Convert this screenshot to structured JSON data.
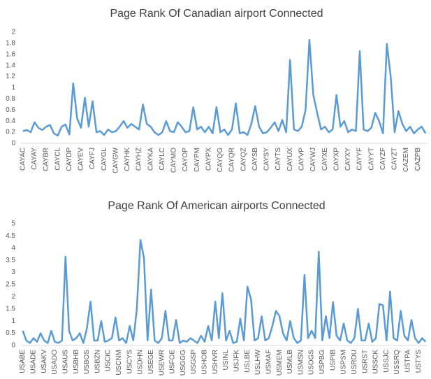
{
  "chart_data": [
    {
      "type": "line",
      "title": "Page Rank Of Canadian airport Connected",
      "color": "#5b9bd5",
      "categories": [
        "CAYAC",
        null,
        null,
        "CAYAY",
        null,
        null,
        "CAYBR",
        null,
        null,
        "CAYCL",
        null,
        null,
        "CAYDP",
        null,
        null,
        "CAYEV",
        null,
        null,
        "CAYFJ",
        null,
        null,
        "CAYGL",
        null,
        null,
        "CAYGW",
        null,
        null,
        "CAYHK",
        null,
        null,
        "CAYHZ",
        null,
        null,
        "CAYKA",
        null,
        null,
        "CAYLC",
        null,
        null,
        "CAYMO",
        null,
        null,
        "CAYOP",
        null,
        null,
        "CAYPM",
        null,
        null,
        "CAYPX",
        null,
        null,
        "CAYQG",
        null,
        null,
        "CAYQR",
        null,
        null,
        "CAYQZ",
        null,
        null,
        "CAYSB",
        null,
        null,
        "CAYSY",
        null,
        null,
        "CAYTS",
        null,
        null,
        "CAYUX",
        null,
        null,
        "CAYVP",
        null,
        null,
        "CAYWJ",
        null,
        null,
        "CAYXE",
        null,
        null,
        "CAYXP",
        null,
        null,
        "CAYXY",
        null,
        null,
        "CAYYF",
        null,
        null,
        "CAYYT",
        null,
        null,
        "CAYZF",
        null,
        null,
        "CAYZT",
        null,
        null,
        "CAZEM",
        null,
        null,
        "CAZPB",
        null,
        null
      ],
      "values": [
        0.22,
        0.24,
        0.2,
        0.38,
        0.28,
        0.24,
        0.3,
        0.33,
        0.18,
        0.14,
        0.3,
        0.34,
        0.16,
        1.08,
        0.45,
        0.28,
        0.82,
        0.3,
        0.76,
        0.2,
        0.22,
        0.15,
        0.25,
        0.2,
        0.22,
        0.3,
        0.4,
        0.28,
        0.35,
        0.3,
        0.25,
        0.7,
        0.35,
        0.3,
        0.2,
        0.15,
        0.2,
        0.4,
        0.22,
        0.2,
        0.38,
        0.3,
        0.2,
        0.22,
        0.65,
        0.25,
        0.3,
        0.2,
        0.3,
        0.18,
        0.65,
        0.2,
        0.25,
        0.15,
        0.25,
        0.72,
        0.18,
        0.2,
        0.15,
        0.35,
        0.67,
        0.3,
        0.18,
        0.2,
        0.28,
        0.38,
        0.22,
        0.42,
        0.2,
        1.5,
        0.25,
        0.22,
        0.3,
        0.6,
        1.86,
        0.87,
        0.55,
        0.25,
        0.3,
        0.2,
        0.25,
        0.87,
        0.3,
        0.4,
        0.2,
        0.25,
        0.22,
        1.66,
        0.25,
        0.22,
        0.28,
        0.55,
        0.4,
        0.18,
        1.79,
        1.2,
        0.2,
        0.58,
        0.35,
        0.22,
        0.3,
        0.18,
        0.25,
        0.3,
        0.18
      ],
      "ylim": [
        0,
        2
      ],
      "yticks": [
        0,
        0.2,
        0.4,
        0.6,
        0.8,
        1,
        1.2,
        1.4,
        1.6,
        1.8,
        2
      ],
      "grid": false
    },
    {
      "type": "line",
      "title": "Page Rank Of American airports Connected",
      "color": "#5b9bd5",
      "categories": [
        "USABE",
        null,
        null,
        "USADE",
        null,
        null,
        "USAKV",
        null,
        null,
        "USADO",
        null,
        null,
        "USAUS",
        null,
        null,
        "USBHB",
        null,
        null,
        "USBOS",
        null,
        null,
        "USBZN",
        null,
        null,
        "USCIC",
        null,
        null,
        "USCNM",
        null,
        null,
        "USCYS",
        null,
        null,
        "USDHN",
        null,
        null,
        "USEGE",
        null,
        null,
        "USEWR",
        null,
        null,
        "USFOE",
        null,
        null,
        "USGGG",
        null,
        null,
        "USGSP",
        null,
        null,
        "USHOB",
        null,
        null,
        "USHVR",
        null,
        null,
        "USINL",
        null,
        null,
        "USJFK",
        null,
        null,
        "USLBE",
        null,
        null,
        "USLHW",
        null,
        null,
        "USMAF",
        null,
        null,
        "USMEM",
        null,
        null,
        "USMLB",
        null,
        null,
        "USMSN",
        null,
        null,
        "USOGS",
        null,
        null,
        "USPBG",
        null,
        null,
        "USPIB",
        null,
        null,
        "USPSM",
        null,
        null,
        "USRDU",
        null,
        null,
        "USRST",
        null,
        null,
        "USSCK",
        null,
        null,
        "USSJC",
        null,
        null,
        "USSRQ",
        null,
        null,
        "USTPA",
        null,
        null,
        "USTYS",
        null,
        null
      ],
      "values": [
        0.6,
        0.2,
        0.1,
        0.3,
        0.15,
        0.5,
        0.2,
        0.1,
        0.6,
        0.15,
        0.1,
        0.2,
        3.65,
        0.6,
        0.2,
        0.3,
        0.5,
        0.1,
        0.7,
        1.8,
        0.2,
        0.2,
        1.0,
        0.15,
        0.2,
        0.3,
        1.15,
        0.2,
        0.3,
        0.1,
        0.8,
        0.2,
        1.5,
        4.33,
        3.6,
        0.2,
        2.3,
        0.2,
        0.1,
        0.3,
        1.42,
        0.2,
        0.2,
        1.05,
        0.1,
        0.2,
        0.15,
        0.3,
        0.2,
        0.1,
        0.4,
        0.15,
        0.8,
        0.2,
        1.8,
        0.3,
        2.15,
        0.2,
        0.6,
        0.1,
        0.15,
        1.1,
        0.2,
        2.42,
        1.9,
        0.2,
        0.3,
        1.2,
        0.2,
        0.3,
        0.8,
        1.42,
        1.2,
        0.5,
        0.2,
        1.0,
        0.3,
        0.1,
        0.2,
        2.9,
        0.3,
        0.6,
        0.3,
        3.85,
        0.2,
        1.2,
        0.3,
        1.78,
        0.4,
        0.2,
        0.9,
        0.2,
        0.1,
        0.3,
        1.5,
        0.2,
        0.2,
        0.9,
        0.15,
        0.3,
        1.7,
        1.65,
        0.2,
        2.22,
        0.3,
        0.2,
        1.42,
        0.4,
        0.2,
        1.05,
        0.3,
        0.1,
        0.3,
        0.15
      ],
      "ylim": [
        0,
        5
      ],
      "yticks": [
        0,
        0.5,
        1,
        1.5,
        2,
        2.5,
        3,
        3.5,
        4,
        4.5,
        5
      ],
      "grid": false
    }
  ]
}
